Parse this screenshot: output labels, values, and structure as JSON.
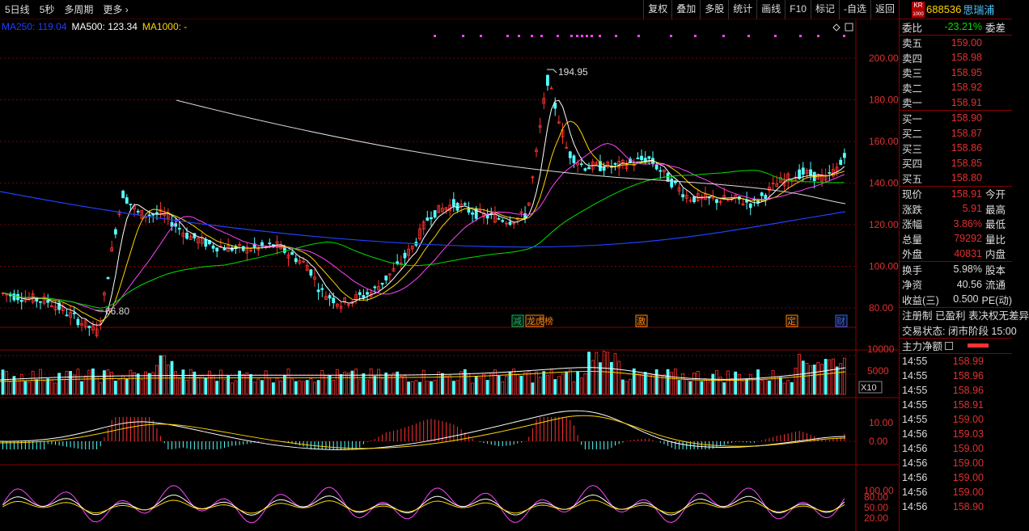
{
  "toolbar": {
    "left": [
      "5日线",
      "5秒",
      "多周期",
      "更多 ›"
    ],
    "right": [
      "复权",
      "叠加",
      "多股",
      "统计",
      "画线",
      "F10",
      "标记",
      "-自选",
      "返回"
    ]
  },
  "ma_legend": [
    {
      "label": "MA250: 119.04",
      "color": "#1f3fff"
    },
    {
      "label": "MA500: 123.34",
      "color": "#ffffff"
    },
    {
      "label": "MA1000: -",
      "color": "#ffd400"
    }
  ],
  "price_axis": [
    "200.00",
    "180.00",
    "160.00",
    "140.00",
    "120.00",
    "100.00",
    "80.00"
  ],
  "volume_axis": [
    "10000",
    "5000"
  ],
  "volume_unit": "X10",
  "macd_axis": [
    "10.00",
    "0.00"
  ],
  "kdj_axis": [
    "100.00",
    "80.00",
    "50.00",
    "20.00"
  ],
  "annotations": {
    "high": "194.95",
    "low": "66.80"
  },
  "event_markers": [
    "减",
    "龙虎榜",
    "激",
    "定",
    "财"
  ],
  "stock": {
    "badge_top": "KR",
    "badge_bottom": "1000",
    "code": "688536",
    "name": "思瑞浦"
  },
  "order_ratio": {
    "label": "委比",
    "value": "-23.21%",
    "extra": "委差"
  },
  "asks": [
    {
      "label": "卖五",
      "price": "159.00"
    },
    {
      "label": "卖四",
      "price": "158.98"
    },
    {
      "label": "卖三",
      "price": "158.95"
    },
    {
      "label": "卖二",
      "price": "158.92"
    },
    {
      "label": "卖一",
      "price": "158.91"
    }
  ],
  "bids": [
    {
      "label": "买一",
      "price": "158.90"
    },
    {
      "label": "买二",
      "price": "158.87"
    },
    {
      "label": "买三",
      "price": "158.86"
    },
    {
      "label": "买四",
      "price": "158.85"
    },
    {
      "label": "买五",
      "price": "158.80"
    }
  ],
  "quote": [
    {
      "label": "现价",
      "value": "158.91",
      "extra": "今开"
    },
    {
      "label": "涨跌",
      "value": "5.91",
      "extra": "最高"
    },
    {
      "label": "涨幅",
      "value": "3.86%",
      "extra": "最低"
    },
    {
      "label": "总量",
      "value": "79292",
      "extra": "量比"
    },
    {
      "label": "外盘",
      "value": "40831",
      "extra": "内盘"
    }
  ],
  "stats": [
    {
      "label": "换手",
      "value": "5.98%",
      "extra": "股本"
    },
    {
      "label": "净资",
      "value": "40.56",
      "extra": "流通"
    },
    {
      "label": "收益(三)",
      "value": "0.500",
      "extra": "PE(动)"
    }
  ],
  "info_line1": "注册制 已盈利 表决权无差异",
  "info_line2": "交易状态: 闭市阶段 15:00",
  "net_flow_label": "主力净额",
  "ticks": [
    {
      "time": "14:55",
      "price": "158.99"
    },
    {
      "time": "14:55",
      "price": "158.96"
    },
    {
      "time": "14:55",
      "price": "158.96"
    },
    {
      "time": "14:55",
      "price": "158.91"
    },
    {
      "time": "14:55",
      "price": "159.00"
    },
    {
      "time": "14:56",
      "price": "159.03"
    },
    {
      "time": "14:56",
      "price": "159.00"
    },
    {
      "time": "14:56",
      "price": "159.00"
    },
    {
      "time": "14:56",
      "price": "159.00"
    },
    {
      "time": "14:56",
      "price": "159.00"
    },
    {
      "time": "14:56",
      "price": "158.90"
    }
  ],
  "colors": {
    "up": "#ff3232",
    "down": "#54ffff",
    "grid": "#7a0000",
    "ma5": "#ffffff",
    "ma10": "#ffd400",
    "ma20": "#ff44ff",
    "ma60": "#00e000",
    "ma250": "#1f3fff"
  }
}
